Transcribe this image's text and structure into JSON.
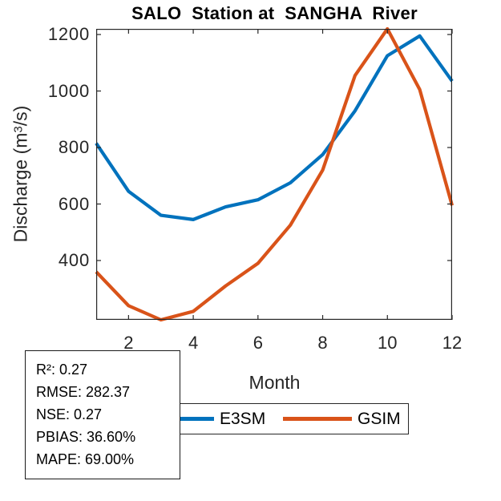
{
  "chart_data": {
    "type": "line",
    "title": "SALO  Station at  SANGHA  River",
    "xlabel": "Month",
    "ylabel": "Discharge (m³/s)",
    "ylabel_parts": {
      "prefix": "Discharge (m",
      "sup": "3",
      "suffix": "/s)"
    },
    "x": [
      1,
      2,
      3,
      4,
      5,
      6,
      7,
      8,
      9,
      10,
      11,
      12
    ],
    "x_ticks": [
      2,
      4,
      6,
      8,
      10,
      12
    ],
    "y_ticks": [
      400,
      600,
      800,
      1000,
      1200
    ],
    "xlim": [
      1,
      12
    ],
    "ylim": [
      190,
      1220
    ],
    "grid": false,
    "legend_position": "below-axes-horizontal",
    "series": [
      {
        "name": "E3SM",
        "color": "#0072BD",
        "values": [
          815,
          645,
          560,
          545,
          590,
          615,
          675,
          775,
          930,
          1125,
          1195,
          1035
        ]
      },
      {
        "name": "GSIM",
        "color": "#D95319",
        "values": [
          360,
          240,
          190,
          220,
          310,
          390,
          525,
          720,
          1055,
          1220,
          1005,
          595
        ]
      }
    ]
  },
  "legend": {
    "items": [
      {
        "label": "E3SM",
        "color": "#0072BD"
      },
      {
        "label": "GSIM",
        "color": "#D95319"
      }
    ]
  },
  "stats_box": {
    "lines": [
      "R²: 0.27",
      "RMSE: 282.37",
      "NSE: 0.27",
      "PBIAS: 36.60%",
      "MAPE: 69.00%"
    ]
  },
  "colors": {
    "axis": "#262626",
    "title_text": "#000000",
    "background": "#ffffff"
  }
}
